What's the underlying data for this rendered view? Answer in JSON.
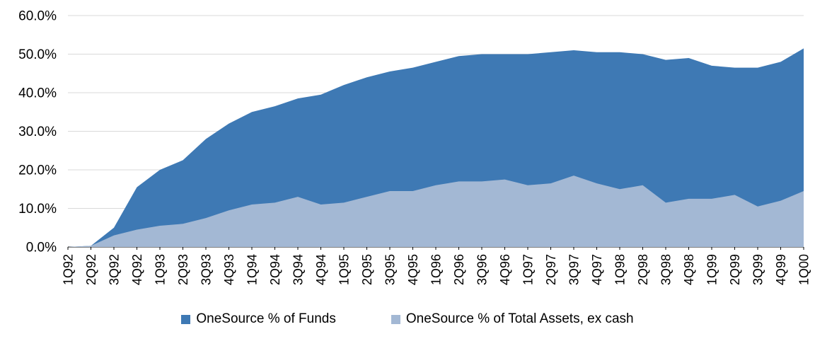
{
  "chart_data": {
    "type": "area",
    "title": "",
    "xlabel": "",
    "ylabel": "",
    "ylim": [
      0,
      60
    ],
    "ytick_step": 10,
    "ytick_suffix": "%",
    "grid": true,
    "legend_position": "bottom",
    "gridline_color": "#d9d9d9",
    "axis_color": "#000000",
    "categories": [
      "1Q92",
      "2Q92",
      "3Q92",
      "4Q92",
      "1Q93",
      "2Q93",
      "3Q93",
      "4Q93",
      "1Q94",
      "2Q94",
      "3Q94",
      "4Q94",
      "1Q95",
      "2Q95",
      "3Q95",
      "4Q95",
      "1Q96",
      "2Q96",
      "3Q96",
      "4Q96",
      "1Q97",
      "2Q97",
      "3Q97",
      "4Q97",
      "1Q98",
      "2Q98",
      "3Q98",
      "4Q98",
      "1Q99",
      "2Q99",
      "3Q99",
      "4Q99",
      "1Q00"
    ],
    "series": [
      {
        "name": "OneSource % of Funds",
        "color": "#3e79b4",
        "values": [
          0,
          0.3,
          5,
          15.5,
          20,
          22.5,
          28,
          32,
          35,
          36.5,
          38.5,
          39.5,
          42,
          44,
          45.5,
          46.5,
          48,
          49.5,
          50,
          50,
          50,
          50.5,
          51,
          50.5,
          50.5,
          50,
          48.5,
          49,
          47,
          46.5,
          46.5,
          48,
          51.5
        ]
      },
      {
        "name": "OneSource % of Total Assets, ex cash",
        "color": "#a3b8d4",
        "values": [
          0,
          0.3,
          3,
          4.5,
          5.5,
          6,
          7.5,
          9.5,
          11,
          11.5,
          13,
          11,
          11.5,
          13,
          14.5,
          14.5,
          16,
          17,
          17,
          17.5,
          16,
          16.5,
          18.5,
          16.5,
          15,
          16,
          11.5,
          12.5,
          12.5,
          13.5,
          10.5,
          12,
          14.5
        ]
      }
    ]
  }
}
